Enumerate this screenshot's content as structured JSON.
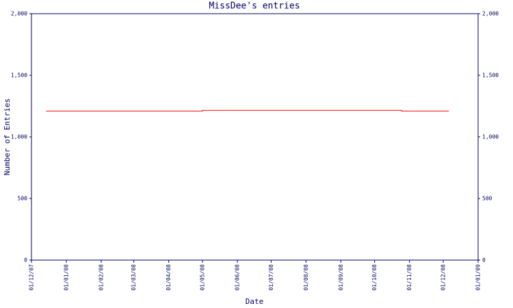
{
  "chart_data": {
    "type": "line",
    "title": "MissDee's entries",
    "x_label": "Date",
    "y_label": "Number of Entries",
    "x": [
      "14/12/07",
      "01/05/08",
      "01/05/08",
      "25/10/08",
      "25/10/08",
      "06/12/08"
    ],
    "series": [
      {
        "color": "#ff0000",
        "values": [
          1210,
          1210,
          1215,
          1215,
          1210,
          1210
        ]
      }
    ],
    "xlim": [
      "01/12/07",
      "01/01/09"
    ],
    "xticks": [
      "01/12/07",
      "01/01/08",
      "01/02/08",
      "01/03/08",
      "01/04/08",
      "01/05/08",
      "01/06/08",
      "01/07/08",
      "01/08/08",
      "01/09/08",
      "01/10/08",
      "01/11/08",
      "01/12/08",
      "01/01/09"
    ],
    "ylim": [
      0,
      2000
    ],
    "yticks": [
      0,
      500,
      {
        "value": 1000,
        "label": "1,000"
      },
      {
        "value": 1500,
        "label": "1,500"
      },
      {
        "value": 2000,
        "label": "2,000"
      }
    ]
  }
}
